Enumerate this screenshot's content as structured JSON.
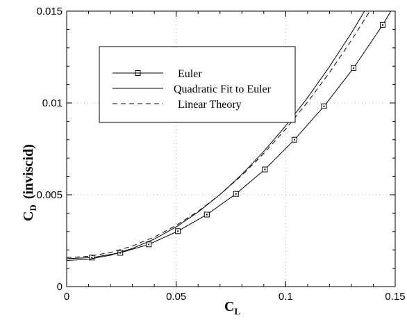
{
  "chart_data": {
    "type": "line",
    "xlabel": "C",
    "xlabel_sub": "L",
    "ylabel": "C",
    "ylabel_sub": "D",
    "ylabel_suffix": "(inviscid)",
    "xlim": [
      0,
      0.15
    ],
    "ylim": [
      0,
      0.015
    ],
    "x_ticks": [
      0,
      0.05,
      0.1,
      0.15
    ],
    "x_tick_labels": [
      "0",
      "0.05",
      "0.1",
      "0.15"
    ],
    "y_ticks": [
      0,
      0.005,
      0.01,
      0.015
    ],
    "y_tick_labels": [
      "0",
      "0.005",
      "0.01",
      "0.015"
    ],
    "grid": true,
    "legend_placement": "upper-left",
    "series": [
      {
        "name": "Euler",
        "style": "solid-square-markers",
        "color": "#000000",
        "x": [
          0.0115,
          0.0245,
          0.0375,
          0.0508,
          0.064,
          0.0773,
          0.0905,
          0.104,
          0.1175,
          0.131,
          0.1443
        ],
        "y": [
          0.00158,
          0.00184,
          0.0023,
          0.00302,
          0.00392,
          0.00505,
          0.00638,
          0.008,
          0.00982,
          0.0119,
          0.01425
        ]
      },
      {
        "name": "Quadratic Fit to Euler",
        "style": "solid",
        "color": "#000000",
        "x": [
          0.0,
          0.01,
          0.02,
          0.03,
          0.04,
          0.05,
          0.06,
          0.07,
          0.08,
          0.09,
          0.1,
          0.11,
          0.12,
          0.13,
          0.14,
          0.1485
        ],
        "y": [
          0.00142,
          0.00149,
          0.00171,
          0.00208,
          0.00259,
          0.00325,
          0.00406,
          0.00501,
          0.00611,
          0.00736,
          0.00875,
          0.01029,
          0.01198,
          0.01381,
          0.01579,
          0.015
        ]
      },
      {
        "name": "Linear Theory",
        "style": "dashed",
        "color": "#000000",
        "x": [
          0.0,
          0.01,
          0.02,
          0.03,
          0.04,
          0.05,
          0.06,
          0.07,
          0.08,
          0.09,
          0.1,
          0.11,
          0.12,
          0.13,
          0.14,
          0.15
        ],
        "y": [
          0.00158,
          0.00165,
          0.00186,
          0.00221,
          0.0027,
          0.00333,
          0.0041,
          0.00501,
          0.00606,
          0.00725,
          0.00858,
          0.01005,
          0.01166,
          0.01341,
          0.0153,
          0.0148
        ]
      }
    ]
  }
}
